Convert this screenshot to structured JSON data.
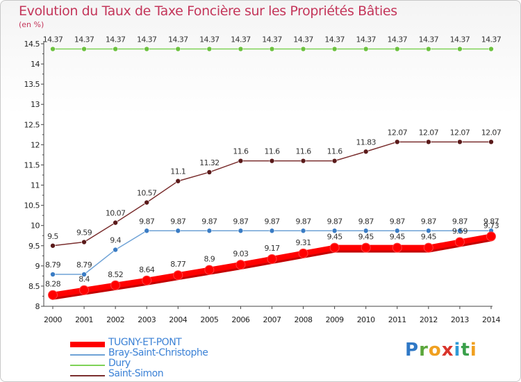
{
  "header": {
    "title": "Evolution du Taux de Taxe Foncière sur les Propriétés Bâties",
    "unit": "(en %)"
  },
  "chart_data": {
    "type": "line",
    "title": "Evolution du Taux de Taxe Foncière sur les Propriétés Bâties",
    "ylabel": "(en %)",
    "xlabel": "",
    "ylim": [
      8,
      14.5
    ],
    "y_ticks": [
      "8",
      "8.5",
      "9",
      "9.5",
      "10",
      "10.5",
      "11",
      "11.5",
      "12",
      "12.5",
      "13",
      "13.5",
      "14",
      "14.5"
    ],
    "x": [
      "2000",
      "2001",
      "2002",
      "2003",
      "2004",
      "2005",
      "2006",
      "2007",
      "2008",
      "2009",
      "2010",
      "2011",
      "2012",
      "2013",
      "2014"
    ],
    "grid": false,
    "legend_position": "bottom-left",
    "series": [
      {
        "name": "Dury",
        "color": "#7ed257",
        "marker": "#6cc13f",
        "style": "thin",
        "values": [
          14.37,
          14.37,
          14.37,
          14.37,
          14.37,
          14.37,
          14.37,
          14.37,
          14.37,
          14.37,
          14.37,
          14.37,
          14.37,
          14.37,
          14.37
        ],
        "labels": [
          "14.37",
          "14.37",
          "14.37",
          "14.37",
          "14.37",
          "14.37",
          "14.37",
          "14.37",
          "14.37",
          "14.37",
          "14.37",
          "14.37",
          "14.37",
          "14.37",
          "14.37"
        ]
      },
      {
        "name": "Saint-Simon",
        "color": "#7a2e2e",
        "marker": "#5a1a1a",
        "style": "thin",
        "values": [
          9.5,
          9.59,
          10.07,
          10.57,
          11.1,
          11.32,
          11.6,
          11.6,
          11.6,
          11.6,
          11.83,
          12.07,
          12.07,
          12.07,
          12.07
        ],
        "labels": [
          "9.5",
          "9.59",
          "10.07",
          "10.57",
          "11.1",
          "11.32",
          "11.6",
          "11.6",
          "11.6",
          "11.6",
          "11.83",
          "12.07",
          "12.07",
          "12.07",
          "12.07"
        ]
      },
      {
        "name": "Bray-Saint-Christophe",
        "color": "#6ea2d6",
        "marker": "#3a7cc4",
        "style": "thin",
        "values": [
          8.79,
          8.79,
          9.4,
          9.87,
          9.87,
          9.87,
          9.87,
          9.87,
          9.87,
          9.87,
          9.87,
          9.87,
          9.87,
          9.87,
          9.87
        ],
        "labels": [
          "8.79",
          "8.79",
          "9.4",
          "9.87",
          "9.87",
          "9.87",
          "9.87",
          "9.87",
          "9.87",
          "9.87",
          "9.87",
          "9.87",
          "9.87",
          "9.87",
          "9.87"
        ]
      },
      {
        "name": "TUGNY-ET-PONT",
        "color": "#ff0000",
        "marker": "#ff0000",
        "style": "thick",
        "values": [
          8.28,
          8.4,
          8.52,
          8.64,
          8.77,
          8.9,
          9.03,
          9.17,
          9.31,
          9.45,
          9.45,
          9.45,
          9.45,
          9.59,
          9.73
        ],
        "labels": [
          "8.28",
          "8.4",
          "8.52",
          "8.64",
          "8.77",
          "8.9",
          "9.03",
          "9.17",
          "9.31",
          "9.45",
          "9.45",
          "9.45",
          "9.45",
          "9.59",
          "9.73"
        ]
      }
    ]
  },
  "legend": [
    {
      "label": "TUGNY-ET-PONT",
      "color": "#ff0000",
      "style": "thick"
    },
    {
      "label": "Bray-Saint-Christophe",
      "color": "#6ea2d6",
      "style": "thin"
    },
    {
      "label": "Dury",
      "color": "#7ed257",
      "style": "thin"
    },
    {
      "label": "Saint-Simon",
      "color": "#7a2e2e",
      "style": "thin"
    }
  ],
  "logo": {
    "text": "Proxiti"
  }
}
